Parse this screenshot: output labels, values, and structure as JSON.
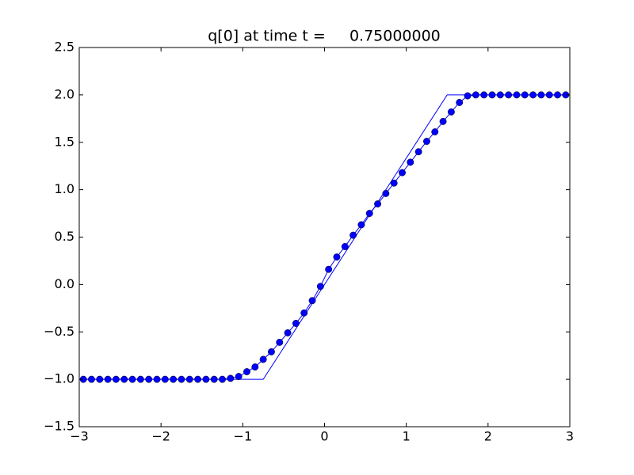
{
  "chart_data": {
    "type": "line",
    "title": "q[0] at time t =     0.75000000",
    "xlim": [
      -3,
      3
    ],
    "ylim": [
      -1.5,
      2.5
    ],
    "xticks": [
      {
        "value": -3,
        "label": "−3"
      },
      {
        "value": -2,
        "label": "−2"
      },
      {
        "value": -1,
        "label": "−1"
      },
      0,
      1,
      2,
      3
    ],
    "yticks": [
      {
        "value": -1.5,
        "label": "−1.5"
      },
      {
        "value": -1,
        "label": "−1.0"
      },
      {
        "value": -0.5,
        "label": "−0.5"
      },
      {
        "value": 0,
        "label": "0.0"
      },
      0.5,
      {
        "value": 1,
        "label": "1.0"
      },
      1.5,
      {
        "value": 2,
        "label": "2.0"
      },
      2.5
    ],
    "series": [
      {
        "color": "#0000ff",
        "marker": false,
        "x": [
          -3,
          -0.75,
          1.5,
          3
        ],
        "values": [
          -1,
          -1,
          2,
          2
        ]
      },
      {
        "color": "#0000ff",
        "marker": true,
        "x": [
          -2.95,
          -2.85,
          -2.75,
          -2.65,
          -2.55,
          -2.45,
          -2.35,
          -2.25,
          -2.15,
          -2.05,
          -1.95,
          -1.85,
          -1.75,
          -1.65,
          -1.55,
          -1.45,
          -1.35,
          -1.25,
          -1.15,
          -1.05,
          -0.95,
          -0.85,
          -0.75,
          -0.65,
          -0.55,
          -0.45,
          -0.35,
          -0.25,
          -0.15,
          -0.05,
          0.05,
          0.15,
          0.25,
          0.35,
          0.45,
          0.55,
          0.65,
          0.75,
          0.85,
          0.95,
          1.05,
          1.15,
          1.25,
          1.35,
          1.45,
          1.55,
          1.65,
          1.75,
          1.85,
          1.95,
          2.05,
          2.15,
          2.25,
          2.35,
          2.45,
          2.55,
          2.65,
          2.75,
          2.85,
          2.95
        ],
        "values": [
          -1,
          -1,
          -1,
          -1,
          -1,
          -1,
          -1,
          -1,
          -1,
          -1,
          -1,
          -1,
          -1,
          -1,
          -1,
          -1,
          -1,
          -1,
          -0.99,
          -0.97,
          -0.92,
          -0.87,
          -0.79,
          -0.71,
          -0.61,
          -0.51,
          -0.41,
          -0.3,
          -0.17,
          -0.02,
          0.16,
          0.29,
          0.4,
          0.52,
          0.63,
          0.75,
          0.85,
          0.96,
          1.07,
          1.18,
          1.29,
          1.4,
          1.51,
          1.61,
          1.72,
          1.82,
          1.92,
          1.99,
          2,
          2,
          2,
          2,
          2,
          2,
          2,
          2,
          2,
          2,
          2,
          2
        ]
      }
    ]
  }
}
